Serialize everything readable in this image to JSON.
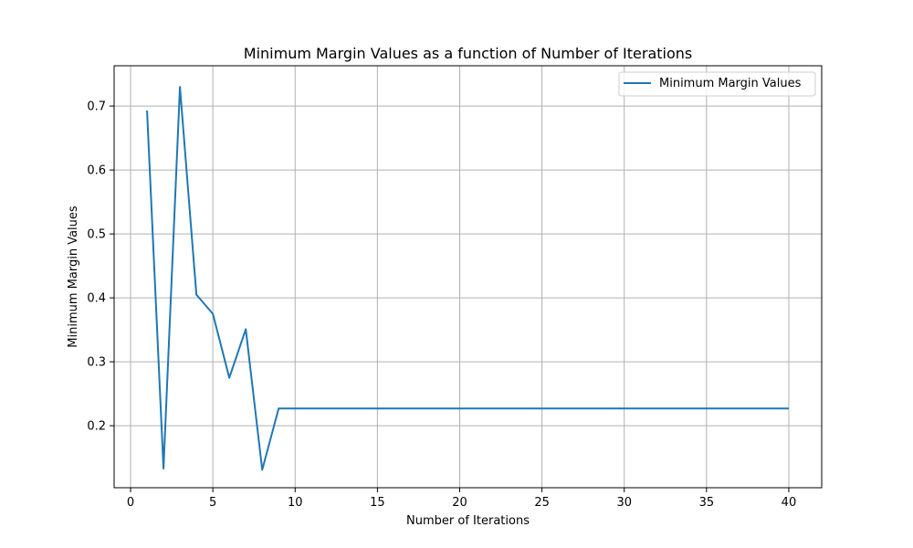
{
  "chart_data": {
    "type": "line",
    "title": "Minimum Margin Values as a function of Number of Iterations",
    "xlabel": "Number of Iterations",
    "ylabel": "Minimum Margin Values",
    "xlim": [
      -1,
      42
    ],
    "ylim": [
      0.103,
      0.763
    ],
    "xticks": [
      0,
      5,
      10,
      15,
      20,
      25,
      30,
      35,
      40
    ],
    "yticks": [
      0.2,
      0.3,
      0.4,
      0.5,
      0.6,
      0.7
    ],
    "xtick_labels": [
      "0",
      "5",
      "10",
      "15",
      "20",
      "25",
      "30",
      "35",
      "40"
    ],
    "ytick_labels": [
      "0.2",
      "0.3",
      "0.4",
      "0.5",
      "0.6",
      "0.7"
    ],
    "grid": true,
    "legend_position": "top-right",
    "series": [
      {
        "name": "Minimum Margin Values",
        "color": "#1f77b4",
        "x": [
          1,
          2,
          3,
          4,
          5,
          6,
          7,
          8,
          9,
          10,
          11,
          12,
          13,
          14,
          15,
          16,
          17,
          18,
          19,
          20,
          21,
          22,
          23,
          24,
          25,
          26,
          27,
          28,
          29,
          30,
          31,
          32,
          33,
          34,
          35,
          36,
          37,
          38,
          39,
          40
        ],
        "y": [
          0.693,
          0.133,
          0.73,
          0.405,
          0.375,
          0.275,
          0.351,
          0.131,
          0.227,
          0.227,
          0.227,
          0.227,
          0.227,
          0.227,
          0.227,
          0.227,
          0.227,
          0.227,
          0.227,
          0.227,
          0.227,
          0.227,
          0.227,
          0.227,
          0.227,
          0.227,
          0.227,
          0.227,
          0.227,
          0.227,
          0.227,
          0.227,
          0.227,
          0.227,
          0.227,
          0.227,
          0.227,
          0.227,
          0.227,
          0.227
        ]
      }
    ]
  }
}
